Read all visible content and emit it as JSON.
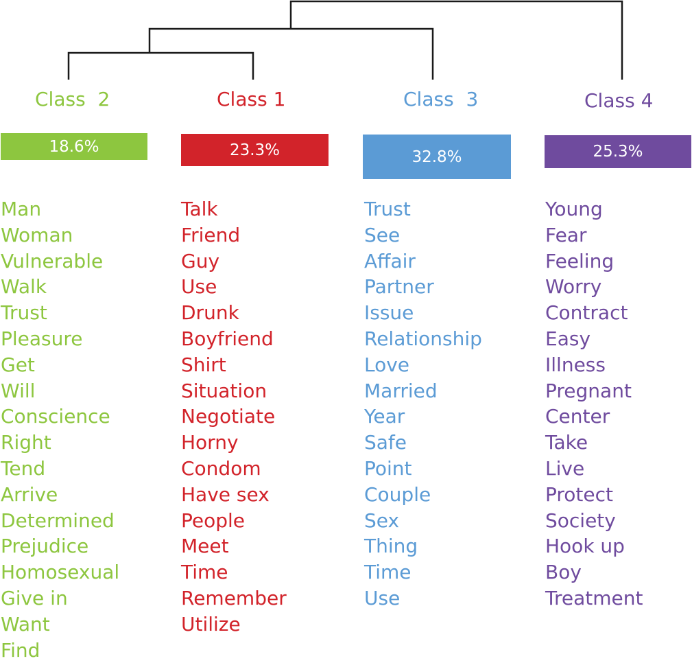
{
  "colors": {
    "class_2": "#8dc63f",
    "class_1": "#d2232a",
    "class_3": "#5b9bd5",
    "class_4": "#6f4b9e",
    "tree": "#1a1a1a"
  },
  "classes": [
    {
      "id": "class-2",
      "title": "Class  2",
      "percent": "18.6%",
      "words": [
        "Man",
        "Woman",
        "Vulnerable",
        "Walk",
        "Trust",
        "Pleasure",
        "Get",
        "Will",
        "Conscience",
        "Right",
        "Tend",
        "Arrive",
        "Determined",
        "Prejudice",
        "Homosexual",
        "Give in",
        "Want",
        "Find"
      ]
    },
    {
      "id": "class-1",
      "title": "Class 1",
      "percent": "23.3%",
      "words": [
        "Talk",
        "Friend",
        "Guy",
        "Use",
        "Drunk",
        "Boyfriend",
        "Shirt",
        "Situation",
        "Negotiate",
        "Horny",
        "Condom",
        "Have sex",
        "People",
        "Meet",
        "Time",
        "Remember",
        "Utilize"
      ]
    },
    {
      "id": "class-3",
      "title": "Class  3",
      "percent": "32.8%",
      "words": [
        "Trust",
        "See",
        "Affair",
        "Partner",
        "Issue",
        "Relationship",
        "Love",
        "Married",
        "Year",
        "Safe",
        "Point",
        "Couple",
        "Sex",
        "Thing",
        "Time",
        "Use"
      ]
    },
    {
      "id": "class-4",
      "title": "Class 4",
      "percent": "25.3%",
      "words": [
        "Young",
        "Fear",
        "Feeling",
        "Worry",
        "Contract",
        "Easy",
        "Illness",
        "Pregnant",
        "Center",
        "Take",
        "Live",
        "Protect",
        "Society",
        "Hook up",
        "Boy",
        "Treatment"
      ]
    }
  ]
}
